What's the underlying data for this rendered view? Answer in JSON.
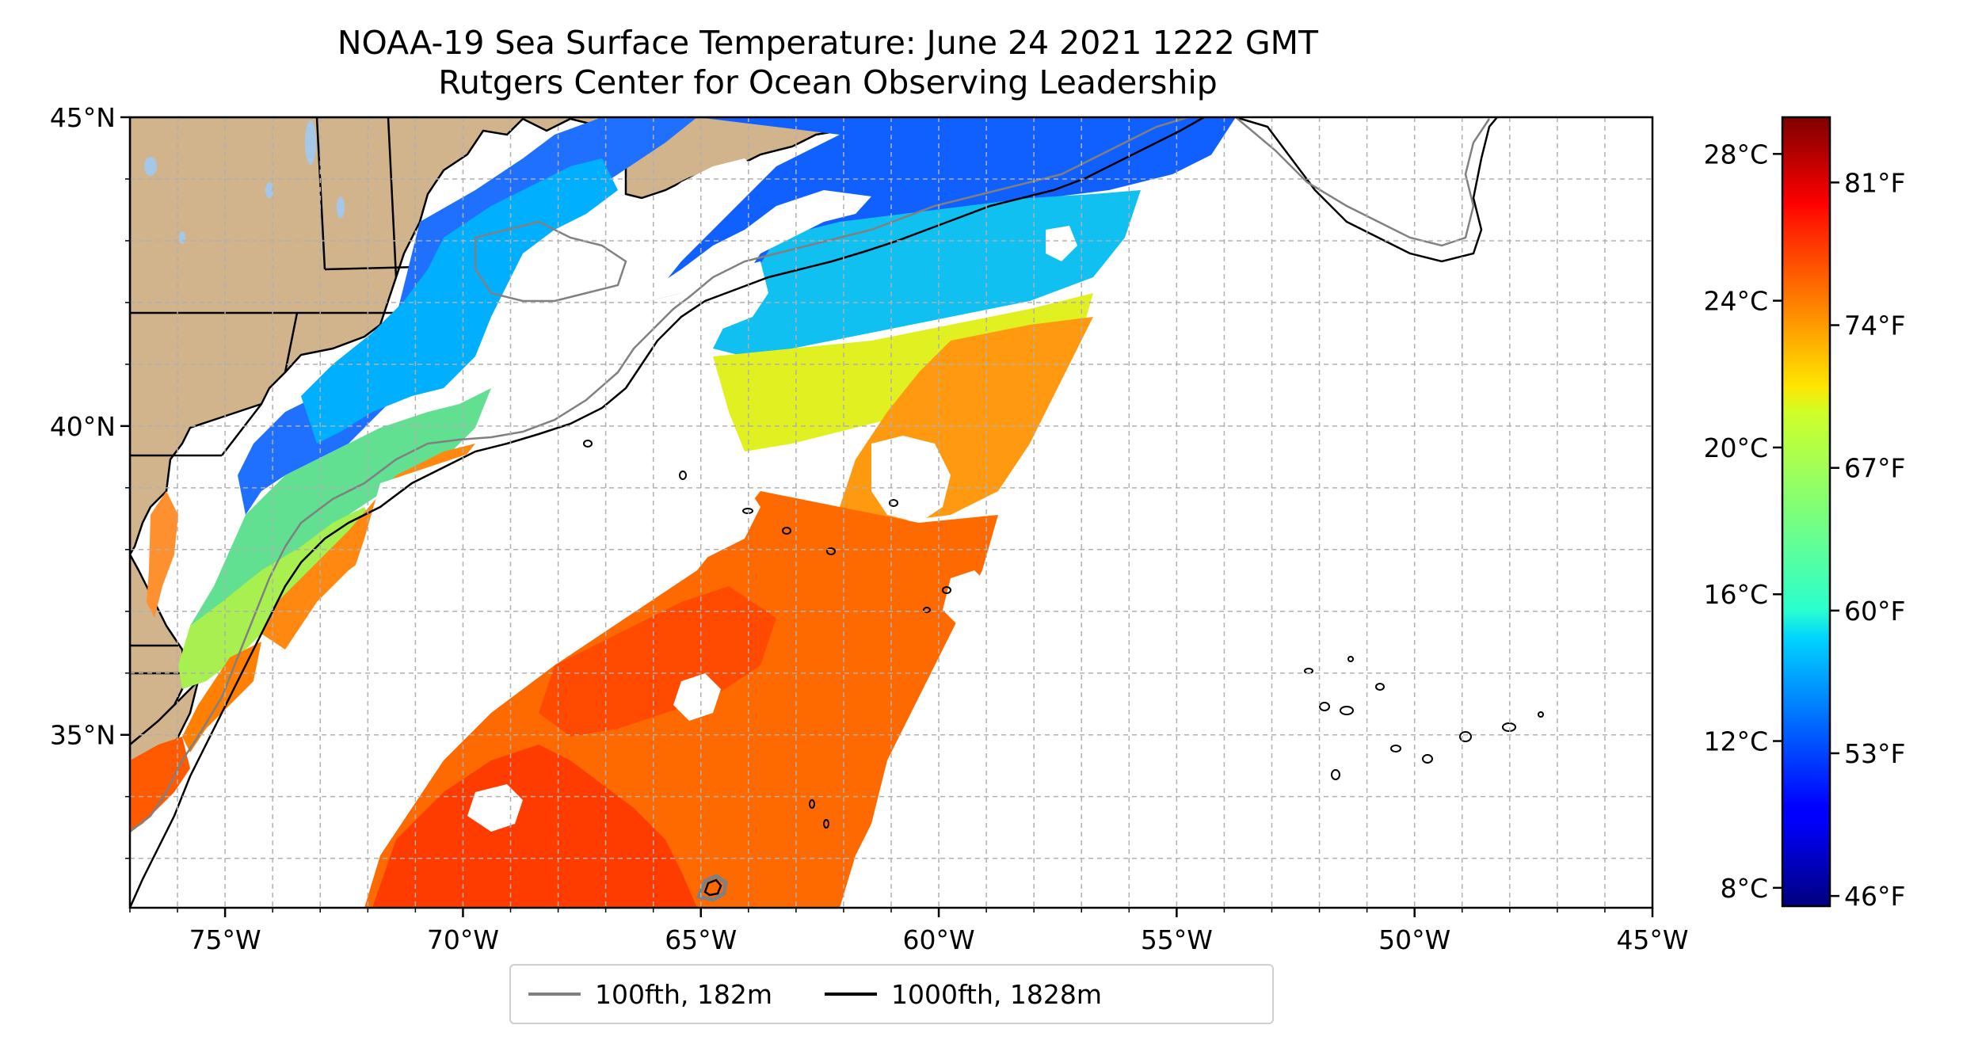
{
  "title": {
    "line1": "NOAA-19 Sea Surface Temperature: June 24 2021 1222 GMT",
    "line2": "Rutgers Center for Ocean Observing Leadership"
  },
  "map": {
    "extent_lon": [
      -77,
      -45
    ],
    "extent_lat": [
      32.2,
      45
    ],
    "lon_ticks": [
      {
        "value": -75,
        "label": "75°W"
      },
      {
        "value": -70,
        "label": "70°W"
      },
      {
        "value": -65,
        "label": "65°W"
      },
      {
        "value": -60,
        "label": "60°W"
      },
      {
        "value": -55,
        "label": "55°W"
      },
      {
        "value": -50,
        "label": "50°W"
      },
      {
        "value": -45,
        "label": "45°W"
      }
    ],
    "lat_ticks": [
      {
        "value": 45,
        "label": "45°N"
      },
      {
        "value": 40,
        "label": "40°N"
      },
      {
        "value": 35,
        "label": "35°N"
      }
    ],
    "gridlines": true,
    "colors": {
      "land": "#d2b48c",
      "water_bodies": "#a6c8e8",
      "contour_100fth": "#808080",
      "contour_1000fth": "#000000"
    }
  },
  "legend": {
    "items": [
      {
        "label": "100fth, 182m",
        "color": "#808080"
      },
      {
        "label": "1000fth, 1828m",
        "color": "#000000"
      }
    ],
    "placement": "bottom-center"
  },
  "colorbar": {
    "colormap": "jet",
    "range_c": [
      7.5,
      29
    ],
    "celsius_ticks": [
      {
        "value": 28,
        "label": "28°C"
      },
      {
        "value": 24,
        "label": "24°C"
      },
      {
        "value": 20,
        "label": "20°C"
      },
      {
        "value": 16,
        "label": "16°C"
      },
      {
        "value": 12,
        "label": "12°C"
      },
      {
        "value": 8,
        "label": "8°C"
      }
    ],
    "fahrenheit_ticks": [
      {
        "value": 81,
        "label": "81°F"
      },
      {
        "value": 74,
        "label": "74°F"
      },
      {
        "value": 67,
        "label": "67°F"
      },
      {
        "value": 60,
        "label": "60°F"
      },
      {
        "value": 53,
        "label": "53°F"
      },
      {
        "value": 46,
        "label": "46°F"
      }
    ]
  }
}
